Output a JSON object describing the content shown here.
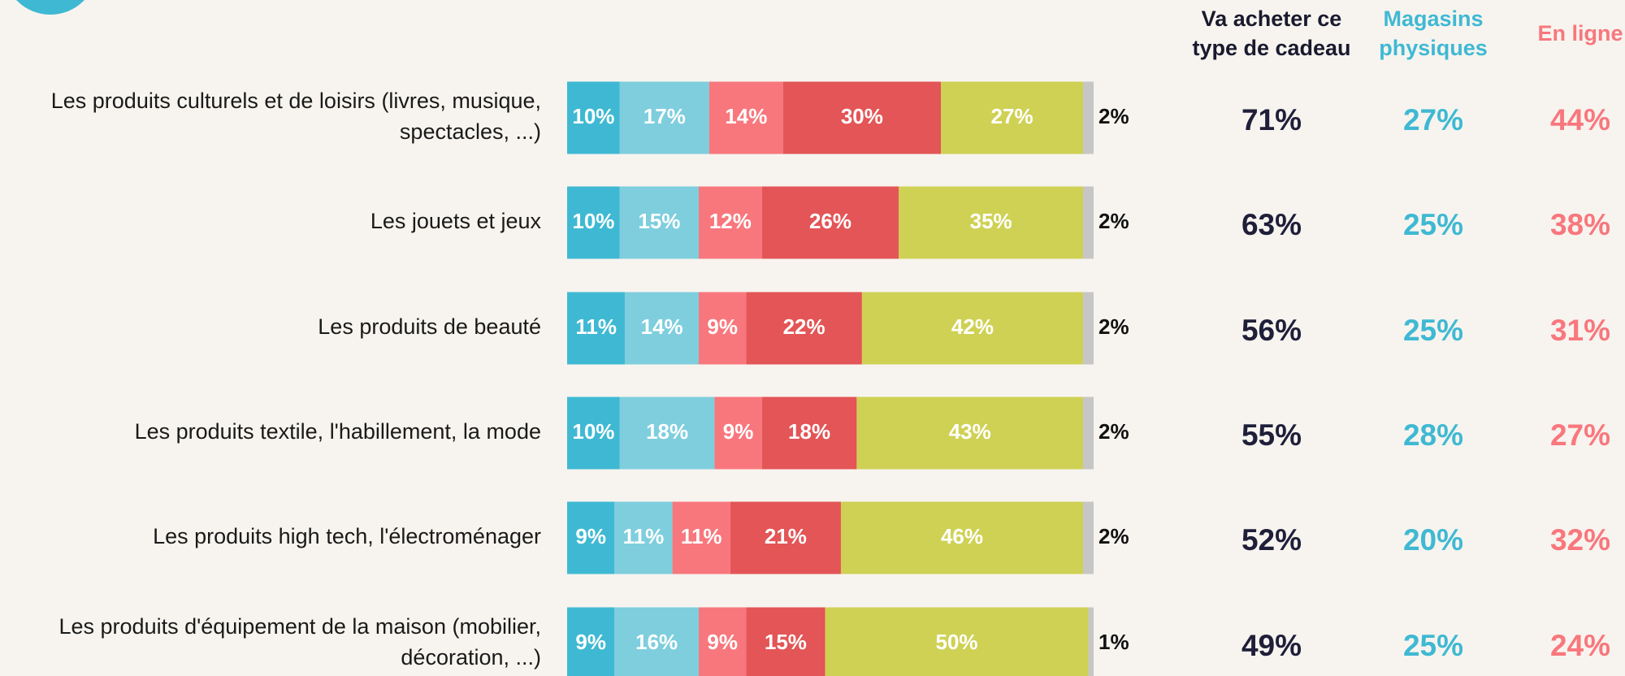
{
  "chart_data": {
    "type": "stacked-bar",
    "orientation": "horizontal",
    "categories": [
      [
        "Les produits culturels et de loisirs (livres, musique,",
        "spectacles, ...)"
      ],
      [
        "Les jouets et jeux"
      ],
      [
        "Les produits de beauté"
      ],
      [
        "Les produits textile, l'habillement, la mode"
      ],
      [
        "Les produits high tech, l'électroménager"
      ],
      [
        "Les produits d'équipement de la maison (mobilier,",
        "décoration, ...)"
      ]
    ],
    "xlim": [
      0,
      100
    ],
    "series": [
      {
        "color": "#3fb9d3",
        "values": [
          10,
          10,
          11,
          10,
          9,
          9
        ],
        "value_labels": [
          "10%",
          "10%",
          "11%",
          "10%",
          "9%",
          "9%"
        ]
      },
      {
        "color": "#7ecede",
        "values": [
          17,
          15,
          14,
          18,
          11,
          16
        ],
        "value_labels": [
          "17%",
          "15%",
          "14%",
          "18%",
          "11%",
          "16%"
        ]
      },
      {
        "color": "#f8777d",
        "values": [
          14,
          12,
          9,
          9,
          11,
          9
        ],
        "value_labels": [
          "14%",
          "12%",
          "9%",
          "9%",
          "11%",
          "9%"
        ]
      },
      {
        "color": "#e35556",
        "values": [
          30,
          26,
          22,
          18,
          21,
          15
        ],
        "value_labels": [
          "30%",
          "26%",
          "22%",
          "18%",
          "21%",
          "15%"
        ]
      },
      {
        "color": "#cfd155",
        "values": [
          27,
          35,
          42,
          43,
          46,
          50
        ],
        "value_labels": [
          "27%",
          "35%",
          "42%",
          "43%",
          "46%",
          "50%"
        ]
      },
      {
        "color": "#c6c6c6",
        "values": [
          2,
          2,
          2,
          2,
          2,
          1
        ],
        "value_labels": [
          "2%",
          "2%",
          "2%",
          "2%",
          "2%",
          "1%"
        ]
      }
    ],
    "columns": [
      {
        "header": [
          "Va acheter ce",
          "type de cadeau"
        ],
        "header_color": "#1a1a2e",
        "color": "#1f1f3a",
        "values": [
          71,
          63,
          56,
          55,
          52,
          49
        ],
        "value_labels": [
          "71%",
          "63%",
          "56%",
          "55%",
          "52%",
          "49%"
        ]
      },
      {
        "header": [
          "Magasins",
          "physiques"
        ],
        "header_color": "#3fb9d3",
        "color": "#3fb9d3",
        "values": [
          27,
          25,
          25,
          28,
          20,
          25
        ],
        "value_labels": [
          "27%",
          "25%",
          "25%",
          "28%",
          "20%",
          "25%"
        ]
      },
      {
        "header": [
          "En ligne"
        ],
        "header_color": "#f8777d",
        "color": "#f8777d",
        "values": [
          44,
          38,
          31,
          27,
          32,
          24
        ],
        "value_labels": [
          "44%",
          "38%",
          "31%",
          "27%",
          "32%",
          "24%"
        ]
      }
    ]
  }
}
